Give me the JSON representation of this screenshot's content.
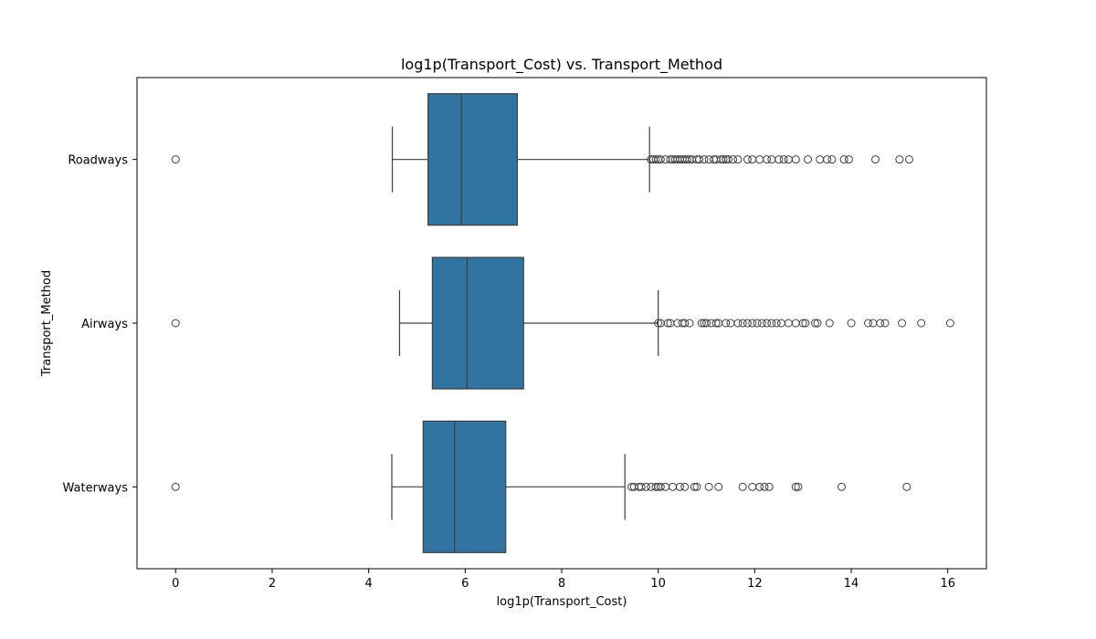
{
  "chart_data": {
    "type": "box",
    "orientation": "horizontal",
    "title": "log1p(Transport_Cost) vs. Transport_Method",
    "xlabel": "log1p(Transport_Cost)",
    "ylabel": "Transport_Method",
    "xlim": [
      -0.8,
      16.8
    ],
    "xticks": [
      0,
      2,
      4,
      6,
      8,
      10,
      12,
      14,
      16
    ],
    "grid": false,
    "box_color": "#3274a1",
    "line_color": "#3f3f3f",
    "categories": [
      "Roadways",
      "Airways",
      "Waterways"
    ],
    "series": [
      {
        "category": "Roadways",
        "whisker_low": 4.49,
        "q1": 5.23,
        "median": 5.92,
        "q3": 7.08,
        "whisker_high": 9.82,
        "outliers": [
          0,
          9.85,
          9.9,
          9.95,
          10.0,
          10.05,
          10.15,
          10.25,
          10.3,
          10.35,
          10.4,
          10.45,
          10.5,
          10.55,
          10.6,
          10.65,
          10.7,
          10.8,
          10.85,
          10.95,
          11.05,
          11.15,
          11.2,
          11.3,
          11.35,
          11.4,
          11.45,
          11.55,
          11.65,
          11.85,
          11.95,
          12.1,
          12.25,
          12.35,
          12.5,
          12.6,
          12.7,
          12.85,
          13.1,
          13.35,
          13.5,
          13.6,
          13.85,
          13.95,
          14.5,
          15.0,
          15.2
        ]
      },
      {
        "category": "Airways",
        "whisker_low": 4.64,
        "q1": 5.32,
        "median": 6.04,
        "q3": 7.21,
        "whisker_high": 10.0,
        "outliers": [
          0,
          10.0,
          10.05,
          10.2,
          10.25,
          10.4,
          10.5,
          10.55,
          10.65,
          10.9,
          10.95,
          11.0,
          11.1,
          11.2,
          11.25,
          11.4,
          11.5,
          11.65,
          11.75,
          11.85,
          11.95,
          12.05,
          12.15,
          12.25,
          12.35,
          12.45,
          12.55,
          12.7,
          12.85,
          13.0,
          13.05,
          13.25,
          13.3,
          13.55,
          14.0,
          14.35,
          14.45,
          14.6,
          14.7,
          15.05,
          15.45,
          16.05
        ]
      },
      {
        "category": "Waterways",
        "whisker_low": 4.48,
        "q1": 5.13,
        "median": 5.78,
        "q3": 6.84,
        "whisker_high": 9.31,
        "outliers": [
          0,
          9.45,
          9.5,
          9.6,
          9.65,
          9.75,
          9.85,
          9.95,
          10.0,
          10.05,
          10.15,
          10.3,
          10.45,
          10.55,
          10.75,
          10.8,
          11.05,
          11.25,
          11.75,
          11.95,
          12.1,
          12.2,
          12.3,
          12.85,
          12.9,
          13.8,
          15.15
        ]
      }
    ]
  }
}
